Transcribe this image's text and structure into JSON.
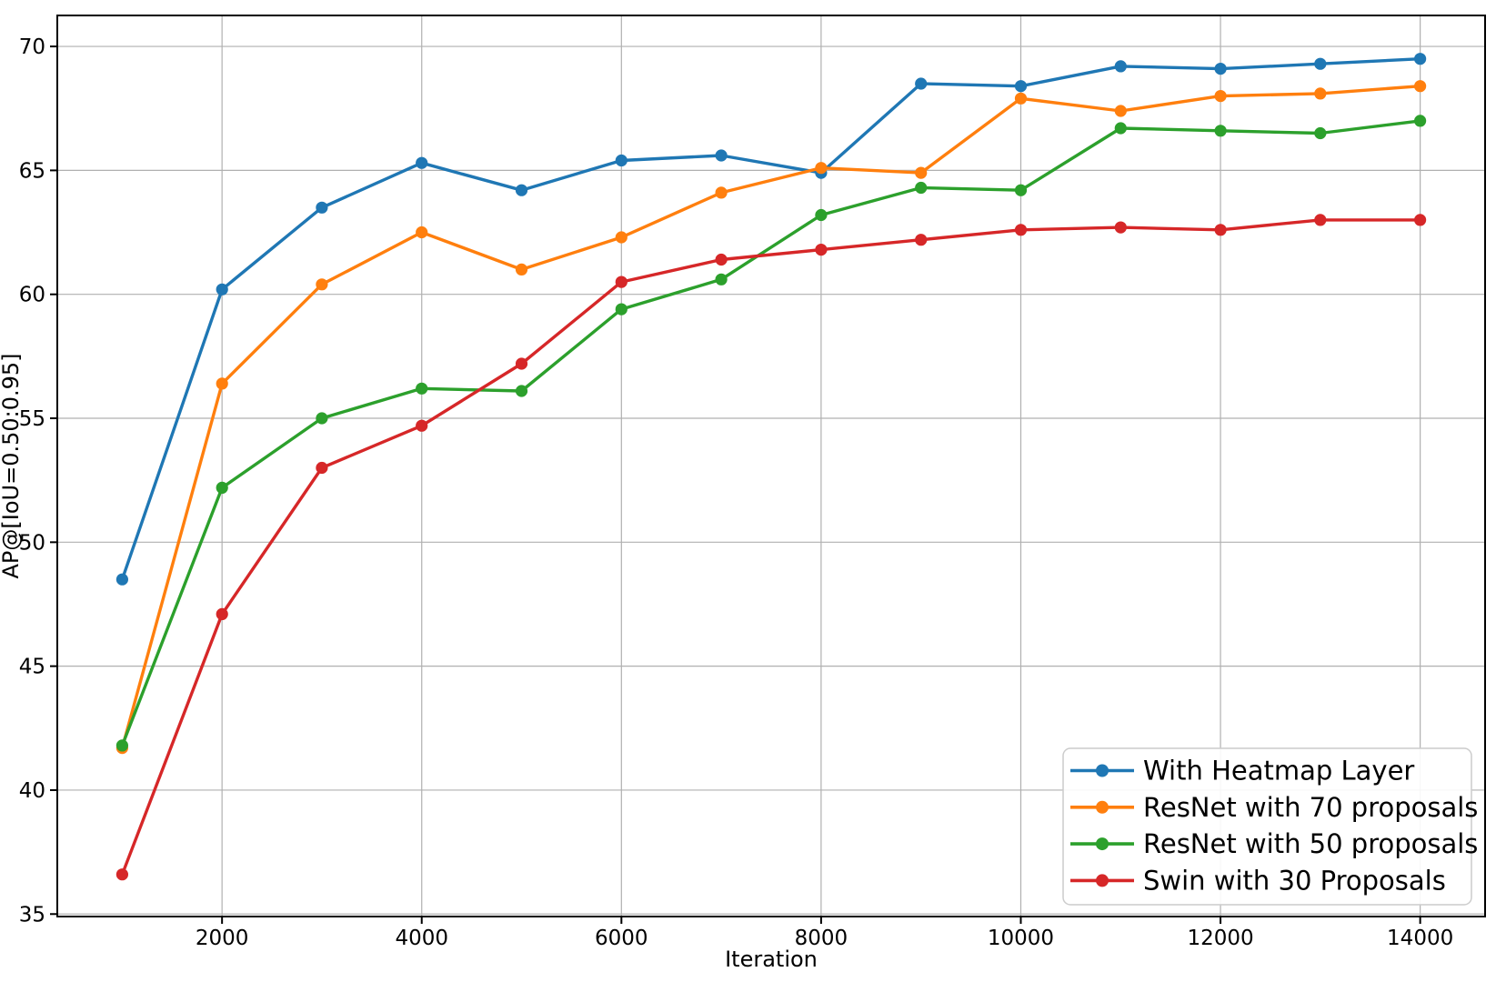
{
  "chart_data": {
    "type": "line",
    "title": "",
    "xlabel": "Iteration",
    "ylabel": "AP@[IoU=0.50:0.95]",
    "x": [
      1000,
      2000,
      3000,
      4000,
      5000,
      6000,
      7000,
      8000,
      9000,
      10000,
      11000,
      12000,
      13000,
      14000
    ],
    "series": [
      {
        "name": "With Heatmap Layer",
        "color": "#1f77b4",
        "marker": "o",
        "values": [
          48.5,
          60.2,
          63.5,
          65.3,
          64.2,
          65.4,
          65.6,
          64.9,
          68.5,
          68.4,
          69.2,
          69.1,
          69.3,
          69.5
        ]
      },
      {
        "name": "ResNet with 70 proposals",
        "color": "#ff7f0e",
        "marker": "o",
        "values": [
          41.7,
          56.4,
          60.4,
          62.5,
          61.0,
          62.3,
          64.1,
          65.1,
          64.9,
          67.9,
          67.4,
          68.0,
          68.1,
          68.4
        ]
      },
      {
        "name": "ResNet with 50 proposals",
        "color": "#2ca02c",
        "marker": "o",
        "values": [
          41.8,
          52.2,
          55.0,
          56.2,
          56.1,
          59.4,
          60.6,
          63.2,
          64.3,
          64.2,
          66.7,
          66.6,
          66.5,
          67.0
        ]
      },
      {
        "name": "Swin with 30 Proposals",
        "color": "#d62728",
        "marker": "o",
        "values": [
          36.6,
          47.1,
          53.0,
          54.7,
          57.2,
          60.5,
          61.4,
          61.8,
          62.2,
          62.6,
          62.7,
          62.6,
          63.0,
          63.0
        ]
      }
    ],
    "xlim": [
      350,
      14650
    ],
    "ylim": [
      34.9,
      71.25
    ],
    "xticks": [
      2000,
      4000,
      6000,
      8000,
      10000,
      12000,
      14000
    ],
    "yticks": [
      35,
      40,
      45,
      50,
      55,
      60,
      65,
      70
    ],
    "xtick_labels": [
      "2000",
      "4000",
      "6000",
      "8000",
      "10000",
      "12000",
      "14000"
    ],
    "ytick_labels": [
      "35",
      "40",
      "45",
      "50",
      "55",
      "60",
      "65",
      "70"
    ],
    "grid": true,
    "grid_color": "#b0b0b0",
    "axis_color": "#000000",
    "background_color": "#ffffff",
    "legend_position": "lower right",
    "legend_entries": [
      "With Heatmap Layer",
      "ResNet with 70 proposals",
      "ResNet with 50 proposals",
      "Swin with 30 Proposals"
    ]
  }
}
